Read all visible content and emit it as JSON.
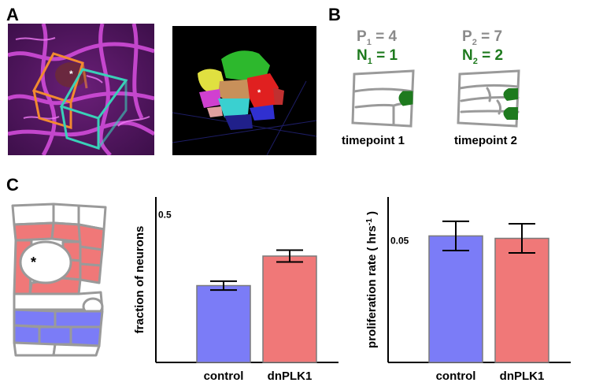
{
  "panels": {
    "a": {
      "letter": "A"
    },
    "b": {
      "letter": "B",
      "timepoints": [
        {
          "p_main": "P",
          "p_sub": "1",
          "p_value": " = 4",
          "n_main": "N",
          "n_sub": "1",
          "n_value": " = 1",
          "label": "timepoint 1"
        },
        {
          "p_main": "P",
          "p_sub": "2",
          "p_value": " = 7",
          "n_main": "N",
          "n_sub": "2",
          "n_value": " = 2",
          "label": "timepoint 2"
        }
      ]
    },
    "c": {
      "letter": "C",
      "asterisk": "*"
    }
  },
  "colors": {
    "magenta": "#c23ad0",
    "green_text": "#1e7a1e",
    "gray_text": "#8a8a8a",
    "control": "#7b7cf7",
    "dnplk1": "#f07878",
    "outline": "#9a9a9a"
  },
  "chart_data": [
    {
      "type": "bar",
      "categories": [
        "control",
        "dnPLK1"
      ],
      "values": [
        0.26,
        0.36
      ],
      "errors": [
        0.015,
        0.02
      ],
      "ylabel": "fraction of neurons",
      "yticks": [
        {
          "value": 0.5,
          "label": "0.5"
        }
      ],
      "ylim": [
        0,
        0.56
      ],
      "colors": [
        "#7b7cf7",
        "#f07878"
      ]
    },
    {
      "type": "bar",
      "categories": [
        "control",
        "dnPLK1"
      ],
      "values": [
        0.052,
        0.051
      ],
      "errors": [
        0.006,
        0.006
      ],
      "ylabel_main": "proliferation rate ( hrs",
      "ylabel_sup": "-1",
      "ylabel_end": " )",
      "yticks": [
        {
          "value": 0.05,
          "label": "0.05"
        }
      ],
      "ylim": [
        0,
        0.068
      ],
      "colors": [
        "#7b7cf7",
        "#f07878"
      ]
    }
  ]
}
